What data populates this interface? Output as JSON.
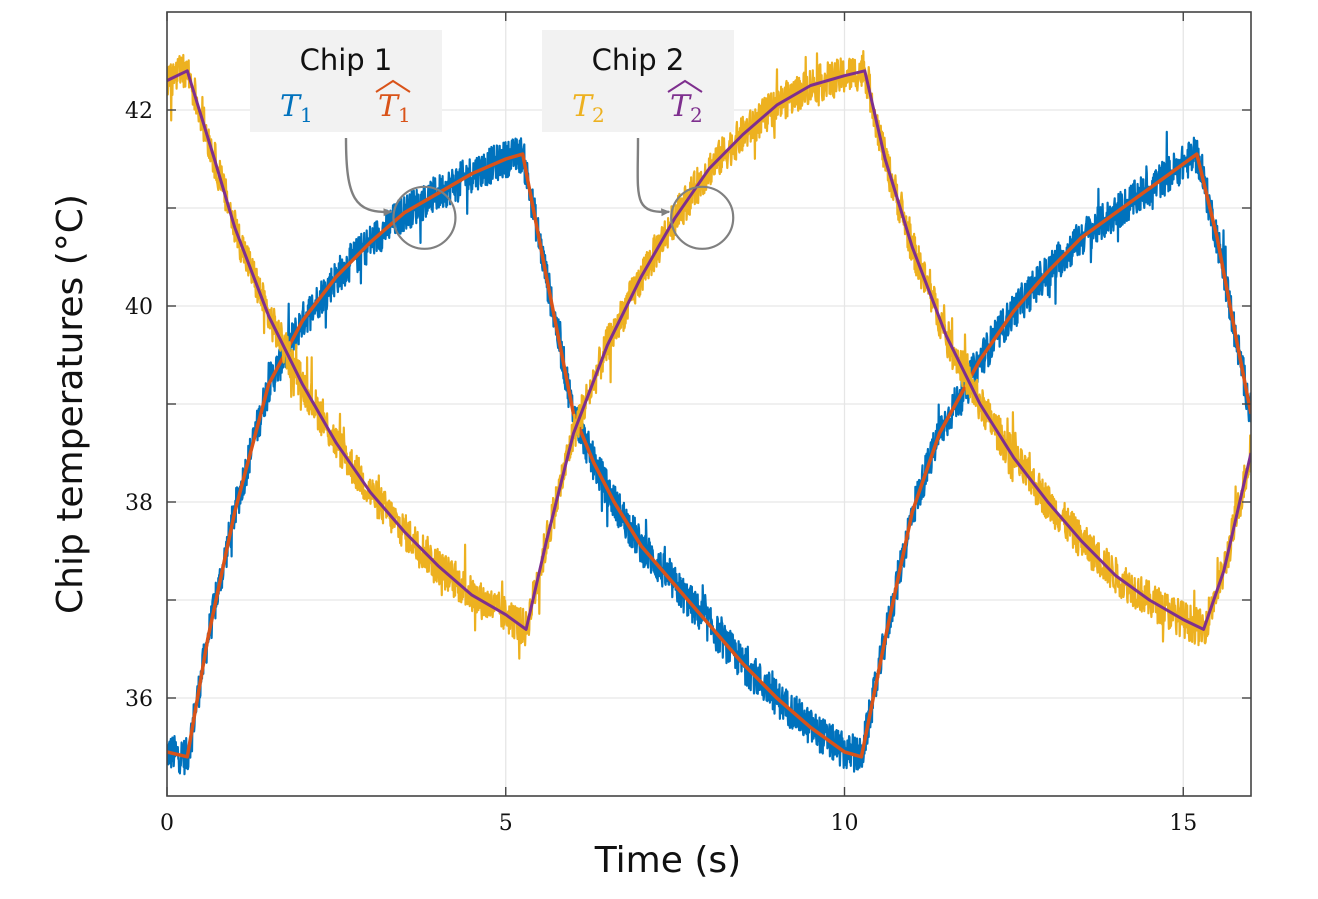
{
  "chart_data": {
    "type": "line",
    "xlabel": "Time (s)",
    "ylabel": "Chip temperatures  (°C)",
    "xlim": [
      0,
      16
    ],
    "ylim": [
      35,
      43
    ],
    "x_ticks": [
      0,
      5,
      10,
      15
    ],
    "x_tick_labels": [
      "0",
      "5",
      "10",
      "15"
    ],
    "y_ticks": [
      36,
      37,
      38,
      39,
      40,
      41,
      42
    ],
    "y_tick_labels": [
      "36",
      "",
      "38",
      "",
      "40",
      "",
      "42"
    ],
    "grid": true,
    "legend_groups": [
      {
        "title": "Chip 1",
        "entries": [
          {
            "symbol": "T",
            "sub": "1",
            "hat": false,
            "color": "#0072BD"
          },
          {
            "symbol": "T",
            "sub": "1",
            "hat": true,
            "color": "#D95319"
          }
        ]
      },
      {
        "title": "Chip 2",
        "entries": [
          {
            "symbol": "T",
            "sub": "2",
            "hat": false,
            "color": "#EDB120"
          },
          {
            "symbol": "T",
            "sub": "2",
            "hat": true,
            "color": "#7E2F8E"
          }
        ]
      }
    ],
    "series": [
      {
        "color": "#0072BD",
        "noisy": true,
        "width": 2.2,
        "x": [
          0,
          0.3,
          0.6,
          1.0,
          1.5,
          2.0,
          2.5,
          3.0,
          3.5,
          4.0,
          4.5,
          5.0,
          5.25,
          5.6,
          6.0,
          6.3,
          6.6,
          7.0,
          7.5,
          8.0,
          8.5,
          9.0,
          9.5,
          10.0,
          10.25,
          10.6,
          11.0,
          11.4,
          11.8,
          12.0,
          12.5,
          13.0,
          13.5,
          14.0,
          14.5,
          15.0,
          15.2,
          15.5,
          15.8,
          16.0
        ],
        "y": [
          35.45,
          35.4,
          36.6,
          37.9,
          39.2,
          39.85,
          40.3,
          40.65,
          40.95,
          41.15,
          41.35,
          41.5,
          41.55,
          40.3,
          38.9,
          38.4,
          38.0,
          37.55,
          37.15,
          36.75,
          36.35,
          36.0,
          35.7,
          35.45,
          35.4,
          36.6,
          37.9,
          38.7,
          39.2,
          39.45,
          39.95,
          40.35,
          40.7,
          40.95,
          41.2,
          41.45,
          41.55,
          40.7,
          39.6,
          38.9
        ]
      },
      {
        "color": "#D95319",
        "noisy": false,
        "width": 3.5,
        "x": [
          0,
          0.3,
          0.6,
          1.0,
          1.5,
          2.0,
          2.5,
          3.0,
          3.5,
          4.0,
          4.5,
          5.0,
          5.25,
          5.6,
          6.0,
          6.3,
          6.6,
          7.0,
          7.5,
          8.0,
          8.5,
          9.0,
          9.5,
          10.0,
          10.25,
          10.6,
          11.0,
          11.4,
          11.8,
          12.0,
          12.5,
          13.0,
          13.5,
          14.0,
          14.5,
          15.0,
          15.2,
          15.5,
          15.8,
          16.0
        ],
        "y": [
          35.45,
          35.4,
          36.6,
          37.9,
          39.2,
          39.85,
          40.3,
          40.65,
          40.95,
          41.15,
          41.35,
          41.5,
          41.55,
          40.3,
          38.9,
          38.4,
          38.0,
          37.55,
          37.15,
          36.75,
          36.35,
          36.0,
          35.7,
          35.45,
          35.4,
          36.6,
          37.9,
          38.7,
          39.2,
          39.45,
          39.95,
          40.35,
          40.7,
          40.95,
          41.2,
          41.45,
          41.55,
          40.7,
          39.6,
          38.9
        ]
      },
      {
        "color": "#EDB120",
        "noisy": true,
        "width": 2.2,
        "x": [
          0,
          0.3,
          0.7,
          1.0,
          1.5,
          2.0,
          2.5,
          3.0,
          3.5,
          4.0,
          4.5,
          5.0,
          5.3,
          5.6,
          6.0,
          6.5,
          7.0,
          7.5,
          8.0,
          8.5,
          9.0,
          9.5,
          10.0,
          10.3,
          10.6,
          11.0,
          11.5,
          12.0,
          12.5,
          13.0,
          13.5,
          14.0,
          14.5,
          15.0,
          15.3,
          15.6,
          16.0
        ],
        "y": [
          42.3,
          42.4,
          41.5,
          40.8,
          39.9,
          39.2,
          38.6,
          38.1,
          37.7,
          37.35,
          37.05,
          36.85,
          36.7,
          37.6,
          38.7,
          39.6,
          40.3,
          40.9,
          41.4,
          41.75,
          42.05,
          42.25,
          42.35,
          42.4,
          41.5,
          40.6,
          39.7,
          39.0,
          38.45,
          38.0,
          37.6,
          37.25,
          37.0,
          36.8,
          36.7,
          37.3,
          38.5
        ]
      },
      {
        "color": "#7E2F8E",
        "noisy": false,
        "width": 3.0,
        "x": [
          0,
          0.3,
          0.7,
          1.0,
          1.5,
          2.0,
          2.5,
          3.0,
          3.5,
          4.0,
          4.5,
          5.0,
          5.3,
          5.6,
          6.0,
          6.5,
          7.0,
          7.5,
          8.0,
          8.5,
          9.0,
          9.5,
          10.0,
          10.3,
          10.6,
          11.0,
          11.5,
          12.0,
          12.5,
          13.0,
          13.5,
          14.0,
          14.5,
          15.0,
          15.3,
          15.6,
          16.0
        ],
        "y": [
          42.3,
          42.4,
          41.5,
          40.8,
          39.9,
          39.2,
          38.6,
          38.1,
          37.7,
          37.35,
          37.05,
          36.85,
          36.7,
          37.6,
          38.7,
          39.6,
          40.3,
          40.9,
          41.4,
          41.75,
          42.05,
          42.25,
          42.35,
          42.4,
          41.5,
          40.6,
          39.7,
          39.0,
          38.45,
          38.0,
          37.6,
          37.25,
          37.0,
          36.8,
          36.7,
          37.3,
          38.5
        ]
      }
    ],
    "callouts": [
      {
        "group": 0,
        "x": 3.8,
        "y": 40.9
      },
      {
        "group": 1,
        "x": 7.9,
        "y": 40.9
      }
    ]
  }
}
